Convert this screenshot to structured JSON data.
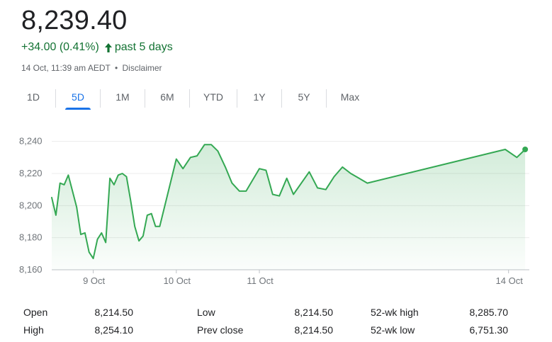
{
  "quote": {
    "price": "8,239.40",
    "change": "+34.00 (0.41%)",
    "period": "past 5 days",
    "timestamp": "14 Oct, 11:39 am AEDT",
    "separator": "•",
    "disclaimer": "Disclaimer"
  },
  "tabs": [
    {
      "label": "1D",
      "active": false
    },
    {
      "label": "5D",
      "active": true
    },
    {
      "label": "1M",
      "active": false
    },
    {
      "label": "6M",
      "active": false
    },
    {
      "label": "YTD",
      "active": false
    },
    {
      "label": "1Y",
      "active": false
    },
    {
      "label": "5Y",
      "active": false
    },
    {
      "label": "Max",
      "active": false
    }
  ],
  "colors": {
    "line": "#34a853",
    "positive_text": "#137333",
    "active_tab": "#1a73e8"
  },
  "chart_data": {
    "type": "area",
    "title": "",
    "xlabel": "",
    "ylabel": "",
    "ylim": [
      8160,
      8250
    ],
    "yticks": [
      8240,
      8220,
      8200,
      8180,
      8160
    ],
    "ytick_labels": [
      "8,240",
      "8,220",
      "8,200",
      "8,180",
      "8,160"
    ],
    "xlim": [
      8.5,
      14.25
    ],
    "xticks": [
      9,
      10,
      11,
      14
    ],
    "xtick_labels": [
      "9 Oct",
      "10 Oct",
      "11 Oct",
      "14 Oct"
    ],
    "grid": true,
    "series": [
      {
        "values": [
          [
            8.5,
            8205
          ],
          [
            8.55,
            8194
          ],
          [
            8.6,
            8214
          ],
          [
            8.65,
            8213
          ],
          [
            8.7,
            8219
          ],
          [
            8.75,
            8209
          ],
          [
            8.8,
            8199
          ],
          [
            8.85,
            8182
          ],
          [
            8.9,
            8183
          ],
          [
            8.95,
            8171
          ],
          [
            9.0,
            8167
          ],
          [
            9.05,
            8179
          ],
          [
            9.1,
            8183
          ],
          [
            9.15,
            8177
          ],
          [
            9.2,
            8217
          ],
          [
            9.25,
            8213
          ],
          [
            9.3,
            8219
          ],
          [
            9.35,
            8220
          ],
          [
            9.4,
            8218
          ],
          [
            9.45,
            8203
          ],
          [
            9.5,
            8187
          ],
          [
            9.55,
            8178
          ],
          [
            9.6,
            8181
          ],
          [
            9.65,
            8194
          ],
          [
            9.7,
            8195
          ],
          [
            9.75,
            8187
          ],
          [
            9.8,
            8187
          ],
          [
            10.0,
            8229
          ],
          [
            10.08,
            8223
          ],
          [
            10.17,
            8230
          ],
          [
            10.25,
            8231
          ],
          [
            10.34,
            8238
          ],
          [
            10.42,
            8238
          ],
          [
            10.5,
            8234
          ],
          [
            10.59,
            8224
          ],
          [
            10.67,
            8214
          ],
          [
            10.76,
            8209
          ],
          [
            10.84,
            8209
          ],
          [
            11.0,
            8223
          ],
          [
            11.08,
            8222
          ],
          [
            11.16,
            8207
          ],
          [
            11.24,
            8206
          ],
          [
            11.33,
            8217
          ],
          [
            11.41,
            8207
          ],
          [
            11.6,
            8221
          ],
          [
            11.7,
            8211
          ],
          [
            11.8,
            8210
          ],
          [
            11.9,
            8218
          ],
          [
            12.0,
            8224
          ],
          [
            12.1,
            8220
          ],
          [
            12.2,
            8217
          ],
          [
            12.3,
            8214
          ],
          [
            13.96,
            8235
          ],
          [
            14.1,
            8230
          ],
          [
            14.2,
            8235
          ]
        ]
      }
    ]
  },
  "stats": {
    "rows": [
      [
        {
          "label": "Open",
          "value": "8,214.50"
        },
        {
          "label": "Low",
          "value": "8,214.50"
        },
        {
          "label": "52-wk high",
          "value": "8,285.70"
        }
      ],
      [
        {
          "label": "High",
          "value": "8,254.10"
        },
        {
          "label": "Prev close",
          "value": "8,214.50"
        },
        {
          "label": "52-wk low",
          "value": "6,751.30"
        }
      ]
    ]
  }
}
